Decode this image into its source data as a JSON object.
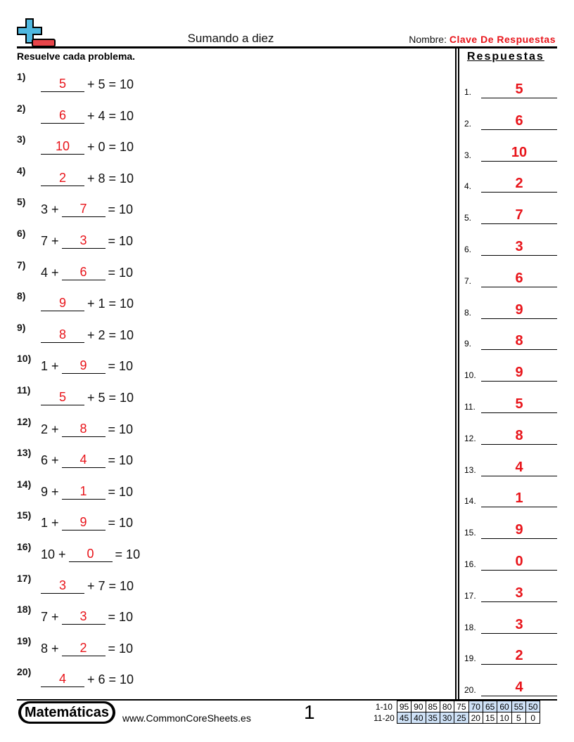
{
  "header": {
    "title": "Sumando a diez",
    "name_label": "Nombre:",
    "name_value": "Clave De Respuestas",
    "instructions": "Resuelve cada problema.",
    "answers_title": "Respuestas"
  },
  "colors": {
    "answer": "#e8141a",
    "logo_blue": "#4fb8e0",
    "logo_red": "#e8454a",
    "score_highlight": "#cfe2f7"
  },
  "problems": [
    {
      "num": "1)",
      "pre": "",
      "answer": "5",
      "post": "+ 5 = 10"
    },
    {
      "num": "2)",
      "pre": "",
      "answer": "6",
      "post": "+ 4 = 10"
    },
    {
      "num": "3)",
      "pre": "",
      "answer": "10",
      "post": "+ 0 = 10"
    },
    {
      "num": "4)",
      "pre": "",
      "answer": "2",
      "post": "+ 8 = 10"
    },
    {
      "num": "5)",
      "pre": "3 +",
      "answer": "7",
      "post": "= 10"
    },
    {
      "num": "6)",
      "pre": "7 +",
      "answer": "3",
      "post": "= 10"
    },
    {
      "num": "7)",
      "pre": "4 +",
      "answer": "6",
      "post": "= 10"
    },
    {
      "num": "8)",
      "pre": "",
      "answer": "9",
      "post": "+ 1 = 10"
    },
    {
      "num": "9)",
      "pre": "",
      "answer": "8",
      "post": "+ 2 = 10"
    },
    {
      "num": "10)",
      "pre": "1 +",
      "answer": "9",
      "post": "= 10"
    },
    {
      "num": "11)",
      "pre": "",
      "answer": "5",
      "post": "+ 5 = 10"
    },
    {
      "num": "12)",
      "pre": "2 +",
      "answer": "8",
      "post": "= 10"
    },
    {
      "num": "13)",
      "pre": "6 +",
      "answer": "4",
      "post": "= 10"
    },
    {
      "num": "14)",
      "pre": "9 +",
      "answer": "1",
      "post": "= 10"
    },
    {
      "num": "15)",
      "pre": "1 +",
      "answer": "9",
      "post": "= 10"
    },
    {
      "num": "16)",
      "pre": "10 +",
      "answer": "0",
      "post": "= 10"
    },
    {
      "num": "17)",
      "pre": "",
      "answer": "3",
      "post": "+ 7 = 10"
    },
    {
      "num": "18)",
      "pre": "7 +",
      "answer": "3",
      "post": "= 10"
    },
    {
      "num": "19)",
      "pre": "8 +",
      "answer": "2",
      "post": "= 10"
    },
    {
      "num": "20)",
      "pre": "",
      "answer": "4",
      "post": "+ 6 = 10"
    }
  ],
  "answer_labels": [
    "1.",
    "2.",
    "3.",
    "4.",
    "5.",
    "6.",
    "7.",
    "8.",
    "9.",
    "10.",
    "11.",
    "12.",
    "13.",
    "14.",
    "15.",
    "16.",
    "17.",
    "18.",
    "19.",
    "20."
  ],
  "footer": {
    "brand": "Matemáticas",
    "site": "www.CommonCoreSheets.es",
    "page": "1",
    "score_rows": [
      {
        "label": "1-10",
        "values": [
          "95",
          "90",
          "85",
          "80",
          "75",
          "70",
          "65",
          "60",
          "55",
          "50"
        ],
        "highlight_from": 5
      },
      {
        "label": "11-20",
        "values": [
          "45",
          "40",
          "35",
          "30",
          "25",
          "20",
          "15",
          "10",
          "5",
          "0"
        ],
        "highlight_to": 4
      }
    ]
  }
}
